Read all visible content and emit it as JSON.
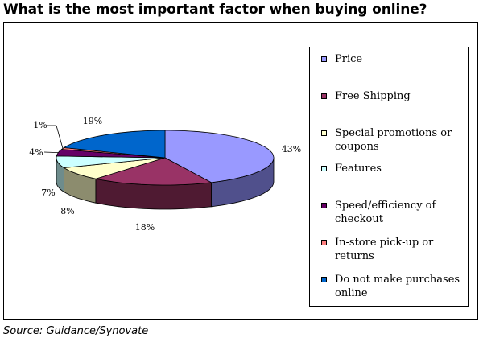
{
  "title": "What is the most important factor when buying online?",
  "source": "Source: Guidance/Synovate",
  "chart_data": {
    "type": "pie",
    "title": "What is the most important factor when buying online?",
    "legend_position": "right",
    "slices": [
      {
        "label": "Price",
        "value": 43,
        "value_label": "43%",
        "color": "#9999ff",
        "side_color": "#50508c"
      },
      {
        "label": "Free Shipping",
        "value": 18,
        "value_label": "18%",
        "color": "#993366",
        "side_color": "#4f1a32"
      },
      {
        "label": "Special promotions or coupons",
        "value": 8,
        "value_label": "8%",
        "color": "#ffffcc",
        "side_color": "#8c8c6e"
      },
      {
        "label": "Features",
        "value": 7,
        "value_label": "7%",
        "color": "#ccffff",
        "side_color": "#6e8c8c"
      },
      {
        "label": "Speed/efficiency of checkout",
        "value": 4,
        "value_label": "4%",
        "color": "#660066",
        "side_color": "#330033"
      },
      {
        "label": "In-store pick-up or returns",
        "value": 1,
        "value_label": "1%",
        "color": "#ff8080",
        "side_color": "#8c4646"
      },
      {
        "label": "Do not make purchases online",
        "value": 19,
        "value_label": "19%",
        "color": "#0066cc",
        "side_color": "#003870"
      }
    ]
  },
  "legend": {
    "items": [
      {
        "label": "Price",
        "color": "#9999ff"
      },
      {
        "label": "Free Shipping",
        "color": "#993366"
      },
      {
        "label": "Special promotions or coupons",
        "color": "#ffffcc"
      },
      {
        "label": "Features",
        "color": "#ccffff"
      },
      {
        "label": "Speed/efficiency of checkout",
        "color": "#660066"
      },
      {
        "label": "In-store pick-up or returns",
        "color": "#ff8080"
      },
      {
        "label": "Do not make purchases online",
        "color": "#0066cc"
      }
    ]
  }
}
